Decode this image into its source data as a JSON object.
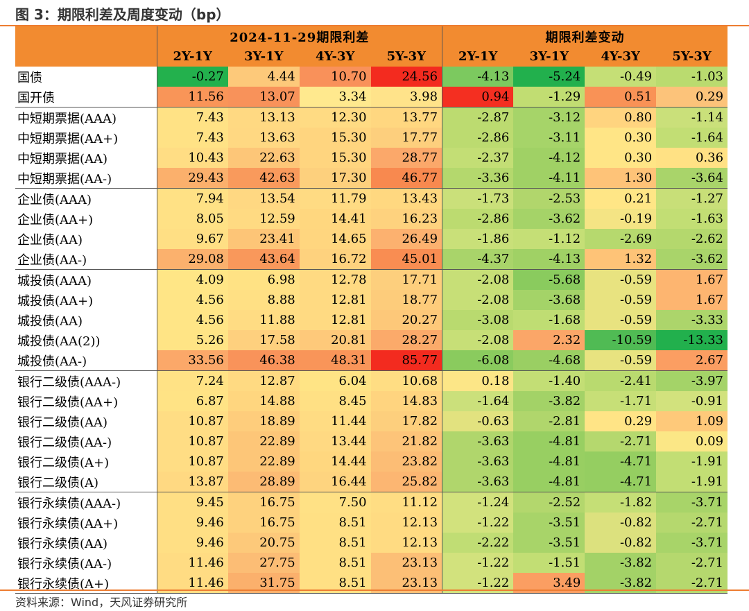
{
  "title": "图 3：期限利差及周度变动（bp）",
  "source": "资料来源：Wind，天风证券研究所",
  "table": {
    "group_headers": [
      "2024-11-29期限利差",
      "期限利差变动"
    ],
    "column_headers": [
      "2Y-1Y",
      "3Y-1Y",
      "4Y-3Y",
      "5Y-3Y",
      "2Y-1Y",
      "3Y-1Y",
      "4Y-3Y",
      "5Y-3Y"
    ],
    "rows": [
      {
        "label": "国债",
        "values": [
          "-0.27",
          "4.44",
          "10.70",
          "24.56",
          "-4.13",
          "-5.24",
          "-0.49",
          "-1.03"
        ],
        "colors": [
          "#23B14D",
          "#FDC97A",
          "#F9915A",
          "#F32B1F",
          "#7CC95F",
          "#22B04D",
          "#C5DF76",
          "#BADB6F"
        ]
      },
      {
        "label": "国开债",
        "values": [
          "11.56",
          "13.07",
          "3.34",
          "3.98",
          "0.94",
          "-1.29",
          "0.51",
          "0.29"
        ],
        "colors": [
          "#F99558",
          "#F8925A",
          "#FFE98E",
          "#FFE38A",
          "#F42F21",
          "#C1DD72",
          "#F99256",
          "#FCC37A"
        ]
      },
      {
        "label": "中短期票据(AAA)",
        "values": [
          "7.43",
          "13.13",
          "12.30",
          "13.77"
        ],
        "colors": [
          "#FFE285",
          "#FFD982",
          "#FFDB83",
          "#FFD780"
        ],
        "group_start": true
      },
      {
        "label": "中短期票据(AA+)",
        "values": [
          "7.43",
          "13.63",
          "15.30",
          "17.77"
        ],
        "colors": [
          "#FFE285",
          "#FFD882",
          "#FFD57F",
          "#FDCF7D"
        ]
      },
      {
        "label": "中短期票据(AA)",
        "values": [
          "10.43",
          "22.63",
          "15.30",
          "28.77"
        ],
        "colors": [
          "#FFDD84",
          "#FDC678",
          "#FFD57F",
          "#FBA86A"
        ]
      },
      {
        "label": "中短期票据(AA-)",
        "values": [
          "29.43",
          "42.63",
          "17.30",
          "46.77"
        ],
        "colors": [
          "#FBB06C",
          "#F99A5C",
          "#FDD07D",
          "#F8894F"
        ]
      },
      {
        "label": "企业债(AAA)",
        "values": [
          "7.94",
          "13.54",
          "11.79",
          "13.43"
        ],
        "colors": [
          "#FFE185",
          "#FFD882",
          "#FFDB83",
          "#FFD880"
        ],
        "group_start": true
      },
      {
        "label": "企业债(AA+)",
        "values": [
          "8.05",
          "12.59",
          "14.41",
          "16.23"
        ],
        "colors": [
          "#FFE185",
          "#FFDA82",
          "#FFD77F",
          "#FED27E"
        ]
      },
      {
        "label": "企业债(AA)",
        "values": [
          "9.67",
          "23.41",
          "14.65",
          "26.49"
        ],
        "colors": [
          "#FFDF84",
          "#FDC577",
          "#FFD67F",
          "#FCB16F"
        ]
      },
      {
        "label": "企业债(AA-)",
        "values": [
          "29.08",
          "43.64",
          "16.72",
          "45.01"
        ],
        "colors": [
          "#FBB16D",
          "#F9985B",
          "#FED27E",
          "#F98D52"
        ]
      },
      {
        "label": "城投债(AAA)",
        "values": [
          "4.09",
          "6.98",
          "12.78",
          "17.71"
        ],
        "colors": [
          "#FFE686",
          "#FFE284",
          "#FFDA82",
          "#FDCF7D"
        ],
        "group_start": true
      },
      {
        "label": "城投债(AA+)",
        "values": [
          "4.56",
          "8.88",
          "12.81",
          "18.77"
        ],
        "colors": [
          "#FFE586",
          "#FFE084",
          "#FFDA82",
          "#FDCC7B"
        ]
      },
      {
        "label": "城投债(AA)",
        "values": [
          "4.56",
          "11.88",
          "12.81",
          "20.27"
        ],
        "colors": [
          "#FFE586",
          "#FFDC83",
          "#FFDA82",
          "#FDC879"
        ]
      },
      {
        "label": "城投债(AA(2))",
        "values": [
          "5.26",
          "17.58",
          "20.81",
          "28.27"
        ],
        "colors": [
          "#FFE485",
          "#FED07E",
          "#FEC97A",
          "#FBAA6A"
        ]
      },
      {
        "label": "城投债(AA-)",
        "values": [
          "33.56",
          "46.38",
          "48.31",
          "85.77"
        ],
        "colors": [
          "#FBA869",
          "#F9935A",
          "#F99559",
          "#F32B1F"
        ]
      },
      {
        "label": "银行二级债(AAA-)",
        "values": [
          "7.24",
          "12.87",
          "6.04",
          "10.68"
        ],
        "colors": [
          "#FFE285",
          "#FFDA82",
          "#FFE485",
          "#FFDD83"
        ],
        "group_start": true
      },
      {
        "label": "银行二级债(AA+)",
        "values": [
          "6.87",
          "14.88",
          "8.45",
          "14.83"
        ],
        "colors": [
          "#FFE385",
          "#FFD67F",
          "#FFE084",
          "#FFD47F"
        ]
      },
      {
        "label": "银行二级债(AA)",
        "values": [
          "10.87",
          "18.89",
          "11.44",
          "17.82"
        ],
        "colors": [
          "#FFDD84",
          "#FECD7C",
          "#FFDC83",
          "#FDCF7D"
        ]
      },
      {
        "label": "银行二级债(AA-)",
        "values": [
          "10.87",
          "22.89",
          "13.44",
          "21.82"
        ],
        "colors": [
          "#FFDD84",
          "#FDC678",
          "#FFD982",
          "#FDC479"
        ]
      },
      {
        "label": "银行二级债(A+)",
        "values": [
          "10.87",
          "22.89",
          "14.44",
          "23.82"
        ],
        "colors": [
          "#FFDD84",
          "#FDC678",
          "#FFD77F",
          "#FCBD75"
        ]
      },
      {
        "label": "银行二级债(A)",
        "values": [
          "13.87",
          "28.89",
          "16.44",
          "25.82"
        ],
        "colors": [
          "#FFD982",
          "#FCBB74",
          "#FED47F",
          "#FCB672"
        ]
      },
      {
        "label": "银行永续债(AAA-)",
        "values": [
          "9.45",
          "16.75",
          "7.50",
          "11.12"
        ],
        "colors": [
          "#FFDF84",
          "#FED27E",
          "#FFE185",
          "#FFDD83"
        ],
        "group_start": true
      },
      {
        "label": "银行永续债(AA+)",
        "values": [
          "9.46",
          "16.75",
          "8.51",
          "12.13"
        ],
        "colors": [
          "#FFDF84",
          "#FED27E",
          "#FFE084",
          "#FFDB82"
        ]
      },
      {
        "label": "银行永续债(AA)",
        "values": [
          "9.46",
          "20.75",
          "8.51",
          "12.13"
        ],
        "colors": [
          "#FFDF84",
          "#FDC97A",
          "#FFE084",
          "#FFDB82"
        ]
      },
      {
        "label": "银行永续债(AA-)",
        "values": [
          "11.46",
          "27.75",
          "8.51",
          "23.13"
        ],
        "colors": [
          "#FFDC83",
          "#FCBD75",
          "#FFE084",
          "#FCBF76"
        ]
      },
      {
        "label": "银行永续债(A+)",
        "values": [
          "11.46",
          "31.75",
          "8.51",
          "23.13"
        ],
        "colors": [
          "#FFDC83",
          "#FBB06C",
          "#FFE084",
          "#FCBF76"
        ]
      }
    ],
    "change_values": [
      null,
      null,
      {
        "values": [
          "-2.87",
          "-3.12",
          "0.80",
          "-1.14"
        ],
        "colors": [
          "#BCDB70",
          "#A6D469",
          "#FFD47F",
          "#CAE07A"
        ]
      },
      {
        "values": [
          "-2.86",
          "-3.11",
          "0.30",
          "-1.64"
        ],
        "colors": [
          "#BCDB70",
          "#A6D469",
          "#FFE586",
          "#C2DE74"
        ]
      },
      {
        "values": [
          "-2.37",
          "-4.12",
          "0.30",
          "0.36"
        ],
        "colors": [
          "#C3DE75",
          "#A0D165",
          "#FFE586",
          "#FFE184"
        ]
      },
      {
        "values": [
          "-3.36",
          "-4.11",
          "1.30",
          "-3.64"
        ],
        "colors": [
          "#B4D86D",
          "#A0D165",
          "#FEC378",
          "#A9D46A"
        ]
      },
      {
        "values": [
          "-1.73",
          "-2.53",
          "0.21",
          "-1.27"
        ],
        "colors": [
          "#CAE07A",
          "#B1D66C",
          "#FFE686",
          "#C8DF78"
        ]
      },
      {
        "values": [
          "-2.86",
          "-3.62",
          "-0.19",
          "-1.63"
        ],
        "colors": [
          "#BCDB70",
          "#A5D368",
          "#F4E484",
          "#C2DE74"
        ]
      },
      {
        "values": [
          "-1.86",
          "-1.12",
          "-2.69",
          "-2.62"
        ],
        "colors": [
          "#C9E079",
          "#C5DF76",
          "#B6D96E",
          "#B4D86D"
        ]
      },
      {
        "values": [
          "-4.37",
          "-4.13",
          "1.32",
          "-3.62"
        ],
        "colors": [
          "#A9D46A",
          "#A0D165",
          "#FEC377",
          "#A9D46A"
        ]
      },
      {
        "values": [
          "-2.08",
          "-5.68",
          "-0.59",
          "1.67"
        ],
        "colors": [
          "#C7DF77",
          "#8ACB5E",
          "#E8E380",
          "#FDB570"
        ]
      },
      {
        "values": [
          "-2.08",
          "-3.68",
          "-0.59",
          "1.67"
        ],
        "colors": [
          "#C7DF77",
          "#A4D368",
          "#E8E380",
          "#FDB570"
        ]
      },
      {
        "values": [
          "-3.08",
          "-1.68",
          "-0.59",
          "-3.33"
        ],
        "colors": [
          "#B9DA6F",
          "#BFDD73",
          "#E8E380",
          "#ACD56B"
        ]
      },
      {
        "values": [
          "-2.08",
          "2.32",
          "-10.59",
          "-13.33"
        ],
        "colors": [
          "#C7DF77",
          "#FBA668",
          "#50BB54",
          "#22B04D"
        ]
      },
      {
        "values": [
          "-6.08",
          "-4.68",
          "-0.59",
          "2.67"
        ],
        "colors": [
          "#8ACB5E",
          "#9ACF63",
          "#E8E380",
          "#FB9E62"
        ]
      },
      {
        "values": [
          "0.18",
          "-1.40",
          "-2.41",
          "-3.97"
        ],
        "colors": [
          "#FCE687",
          "#C3DE75",
          "#B9DA6F",
          "#A4D368"
        ]
      },
      {
        "values": [
          "-1.64",
          "-3.82",
          "-1.71",
          "-0.91"
        ],
        "colors": [
          "#CBE07B",
          "#A3D267",
          "#C7DF77",
          "#D2E27D"
        ]
      },
      {
        "values": [
          "-0.63",
          "-2.81",
          "0.29",
          "1.09"
        ],
        "colors": [
          "#E2E27F",
          "#B0D66C",
          "#FFE486",
          "#FEC97A"
        ]
      },
      {
        "values": [
          "-3.63",
          "-4.81",
          "-2.71",
          "0.09"
        ],
        "colors": [
          "#B0D66C",
          "#98CF62",
          "#B5D86E",
          "#FBE786"
        ]
      },
      {
        "values": [
          "-3.63",
          "-4.81",
          "-4.71",
          "-1.91"
        ],
        "colors": [
          "#B0D66C",
          "#98CF62",
          "#95CE61",
          "#C2DE74"
        ]
      },
      {
        "values": [
          "-3.63",
          "-4.81",
          "-4.71",
          "-1.91"
        ],
        "colors": [
          "#B0D66C",
          "#98CF62",
          "#95CE61",
          "#C2DE74"
        ]
      },
      {
        "values": [
          "-1.24",
          "-2.52",
          "-1.82",
          "-3.71"
        ],
        "colors": [
          "#D2E27D",
          "#B3D76D",
          "#C5DF76",
          "#A8D469"
        ]
      },
      {
        "values": [
          "-1.22",
          "-3.51",
          "-0.82",
          "-2.71"
        ],
        "colors": [
          "#D2E27D",
          "#A8D469",
          "#DCE17E",
          "#B5D86E"
        ]
      },
      {
        "values": [
          "-2.22",
          "-3.51",
          "-0.82",
          "-3.71"
        ],
        "colors": [
          "#C0DD74",
          "#A8D469",
          "#DCE17E",
          "#A8D469"
        ]
      },
      {
        "values": [
          "-1.22",
          "-1.51",
          "-3.82",
          "-2.71"
        ],
        "colors": [
          "#D2E27D",
          "#C2DE74",
          "#A3D267",
          "#B5D86E"
        ]
      },
      {
        "values": [
          "-1.22",
          "3.49",
          "-3.82",
          "-2.71"
        ],
        "colors": [
          "#D2E27D",
          "#FB9E62",
          "#A3D267",
          "#B5D86E"
        ]
      }
    ]
  }
}
